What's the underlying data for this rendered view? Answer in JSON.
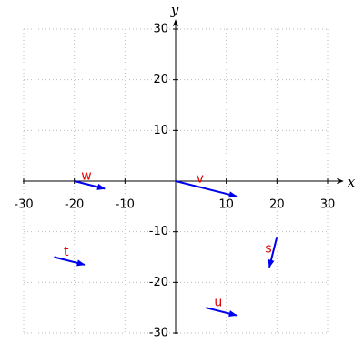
{
  "chart_data": {
    "type": "vector",
    "xlabel": "x",
    "ylabel": "y",
    "xlim": [
      -30,
      30
    ],
    "ylim": [
      -30,
      30
    ],
    "xticks": [
      -30,
      -20,
      -10,
      10,
      20,
      30
    ],
    "yticks": [
      -30,
      -20,
      -10,
      10,
      20,
      30
    ],
    "grid": true,
    "color": "#0000ee",
    "label_color": "#e00000",
    "vectors": [
      {
        "name": "w",
        "x0": -20,
        "y0": 0,
        "x1": -14,
        "y1": -1.5
      },
      {
        "name": "v",
        "x0": 0,
        "y0": 0,
        "x1": 12,
        "y1": -3
      },
      {
        "name": "t",
        "x0": -24,
        "y0": -15,
        "x1": -18,
        "y1": -16.5
      },
      {
        "name": "s",
        "x0": 20,
        "y0": -11,
        "x1": 18.5,
        "y1": -17
      },
      {
        "name": "u",
        "x0": 6,
        "y0": -25,
        "x1": 12,
        "y1": -26.5
      }
    ]
  }
}
